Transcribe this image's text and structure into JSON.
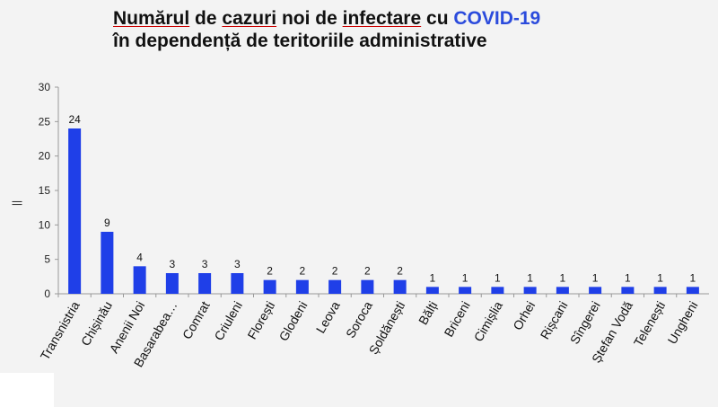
{
  "header": {
    "title_w1": "Numărul",
    "title_w2": "de",
    "title_w3": "cazuri",
    "title_w4": "noi de",
    "title_w5": "infectare",
    "title_w6": "cu",
    "title_hl": "COVID-19",
    "title_line2": "în dependență de teritoriile administrative"
  },
  "colors": {
    "bar": "#1f3fe8",
    "highlight": "#2b4bdc",
    "axis": "#999999"
  },
  "chart_data": {
    "type": "bar",
    "categories": [
      "Transnistria",
      "Chișinău",
      "Anenii Noi",
      "Basarabea…",
      "Comrat",
      "Criuleni",
      "Florești",
      "Glodeni",
      "Leova",
      "Soroca",
      "Șoldănești",
      "Bălți",
      "Briceni",
      "Cimișlia",
      "Orhei",
      "Rișcani",
      "Sîngerei",
      "Ștefan Vodă",
      "Telenești",
      "Ungheni"
    ],
    "values": [
      24,
      9,
      4,
      3,
      3,
      3,
      2,
      2,
      2,
      2,
      2,
      1,
      1,
      1,
      1,
      1,
      1,
      1,
      1,
      1
    ],
    "yticks": [
      "0",
      "5",
      "10",
      "15",
      "20",
      "25",
      "30"
    ],
    "ylim": [
      0,
      30
    ],
    "ylabel": "||",
    "xlabel": "",
    "grid": false
  }
}
